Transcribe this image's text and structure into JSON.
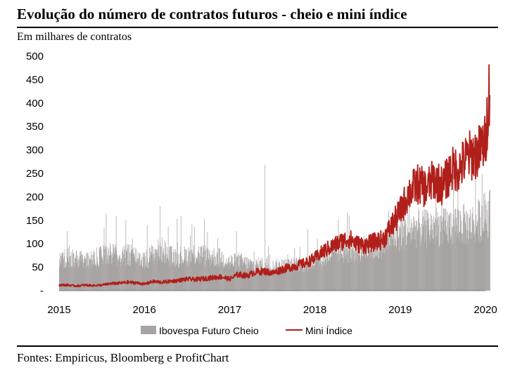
{
  "chart_data": {
    "type": "bar+line",
    "title": "Evolução do número de contratos futuros - cheio e mini índice",
    "ylabel": "Em milhares de contratos",
    "ylim": [
      0,
      500
    ],
    "yticks": [
      "-",
      "50",
      "100",
      "150",
      "200",
      "250",
      "300",
      "350",
      "400",
      "450",
      "500"
    ],
    "xlim": [
      2015,
      2020
    ],
    "xticks": [
      "2015",
      "2016",
      "2017",
      "2018",
      "2019",
      "2020"
    ],
    "series": [
      {
        "name": "Ibovespa Futuro Cheio",
        "type": "bar",
        "color": "#a8a4a3",
        "x": [
          2015.0,
          2015.1,
          2015.2,
          2015.3,
          2015.4,
          2015.5,
          2015.6,
          2015.7,
          2015.8,
          2015.9,
          2016.0,
          2016.1,
          2016.2,
          2016.3,
          2016.4,
          2016.5,
          2016.6,
          2016.7,
          2016.8,
          2016.9,
          2017.0,
          2017.1,
          2017.2,
          2017.3,
          2017.4,
          2017.5,
          2017.6,
          2017.7,
          2017.8,
          2017.9,
          2018.0,
          2018.1,
          2018.2,
          2018.3,
          2018.4,
          2018.5,
          2018.6,
          2018.7,
          2018.8,
          2018.9,
          2019.0,
          2019.1,
          2019.2,
          2019.3,
          2019.4,
          2019.5,
          2019.6,
          2019.7,
          2019.8,
          2019.9,
          2020.0,
          2020.05
        ],
        "values": [
          70,
          75,
          72,
          68,
          74,
          80,
          85,
          78,
          82,
          80,
          70,
          85,
          95,
          80,
          78,
          80,
          85,
          82,
          78,
          75,
          65,
          68,
          62,
          58,
          60,
          55,
          58,
          57,
          60,
          62,
          70,
          75,
          85,
          90,
          92,
          95,
          98,
          100,
          110,
          125,
          135,
          140,
          145,
          142,
          150,
          145,
          150,
          155,
          150,
          160,
          175,
          180
        ],
        "peaks": [
          {
            "x": 2016.18,
            "value": 180
          },
          {
            "x": 2017.41,
            "value": 268
          },
          {
            "x": 2019.88,
            "value": 240
          },
          {
            "x": 2020.05,
            "value": 215
          }
        ]
      },
      {
        "name": "Mini Índice",
        "type": "line",
        "color": "#b11f1a",
        "x": [
          2015.0,
          2015.1,
          2015.2,
          2015.3,
          2015.4,
          2015.5,
          2015.6,
          2015.7,
          2015.8,
          2015.9,
          2016.0,
          2016.1,
          2016.2,
          2016.3,
          2016.4,
          2016.5,
          2016.6,
          2016.7,
          2016.8,
          2016.9,
          2017.0,
          2017.1,
          2017.2,
          2017.3,
          2017.4,
          2017.5,
          2017.6,
          2017.7,
          2017.8,
          2017.9,
          2018.0,
          2018.1,
          2018.2,
          2018.3,
          2018.4,
          2018.5,
          2018.6,
          2018.7,
          2018.8,
          2018.9,
          2019.0,
          2019.1,
          2019.2,
          2019.3,
          2019.4,
          2019.5,
          2019.6,
          2019.7,
          2019.8,
          2019.9,
          2020.0,
          2020.05
        ],
        "values": [
          12,
          12,
          10,
          12,
          11,
          12,
          15,
          16,
          18,
          17,
          14,
          20,
          18,
          20,
          22,
          25,
          24,
          26,
          28,
          30,
          25,
          35,
          32,
          40,
          42,
          38,
          45,
          50,
          55,
          60,
          70,
          85,
          95,
          105,
          112,
          100,
          98,
          105,
          110,
          140,
          170,
          210,
          230,
          220,
          240,
          225,
          260,
          265,
          290,
          295,
          320,
          445
        ]
      }
    ],
    "legend": [
      "Ibovespa Futuro Cheio",
      "Mini Índice"
    ],
    "legend_position": "bottom-center",
    "source": "Fontes: Empiricus, Bloomberg e ProfitChart"
  }
}
